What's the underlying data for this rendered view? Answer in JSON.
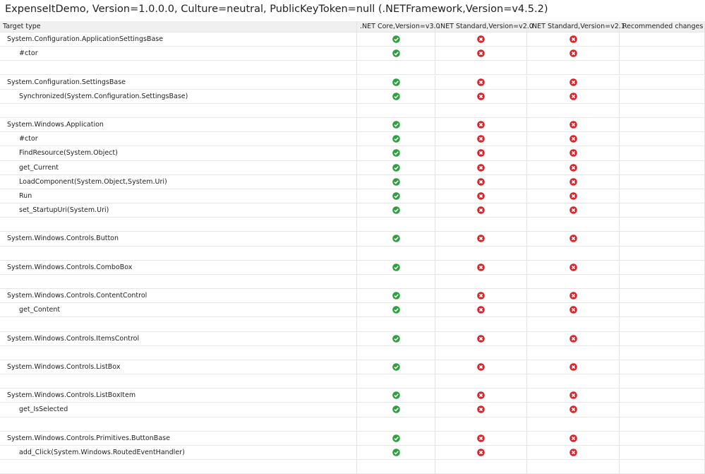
{
  "title": "ExpenseItDemo, Version=1.0.0.0, Culture=neutral, PublicKeyToken=null (.NETFramework,Version=v4.5.2)",
  "table": {
    "headers": [
      "Target type",
      ".NET Core,Version=v3.0",
      ".NET Standard,Version=v2.0",
      ".NET Standard,Version=v2.1",
      "Recommended changes"
    ],
    "groups": [
      {
        "type": "System.Configuration.ApplicationSettingsBase",
        "status": [
          true,
          false,
          false
        ],
        "members": [
          {
            "name": "#ctor",
            "status": [
              true,
              false,
              false
            ]
          }
        ]
      },
      {
        "type": "System.Configuration.SettingsBase",
        "status": [
          true,
          false,
          false
        ],
        "members": [
          {
            "name": "Synchronized(System.Configuration.SettingsBase)",
            "status": [
              true,
              false,
              false
            ]
          }
        ]
      },
      {
        "type": "System.Windows.Application",
        "status": [
          true,
          false,
          false
        ],
        "members": [
          {
            "name": "#ctor",
            "status": [
              true,
              false,
              false
            ]
          },
          {
            "name": "FindResource(System.Object)",
            "status": [
              true,
              false,
              false
            ]
          },
          {
            "name": "get_Current",
            "status": [
              true,
              false,
              false
            ]
          },
          {
            "name": "LoadComponent(System.Object,System.Uri)",
            "status": [
              true,
              false,
              false
            ]
          },
          {
            "name": "Run",
            "status": [
              true,
              false,
              false
            ]
          },
          {
            "name": "set_StartupUri(System.Uri)",
            "status": [
              true,
              false,
              false
            ]
          }
        ]
      },
      {
        "type": "System.Windows.Controls.Button",
        "status": [
          true,
          false,
          false
        ],
        "members": []
      },
      {
        "type": "System.Windows.Controls.ComboBox",
        "status": [
          true,
          false,
          false
        ],
        "members": []
      },
      {
        "type": "System.Windows.Controls.ContentControl",
        "status": [
          true,
          false,
          false
        ],
        "members": [
          {
            "name": "get_Content",
            "status": [
              true,
              false,
              false
            ]
          }
        ]
      },
      {
        "type": "System.Windows.Controls.ItemsControl",
        "status": [
          true,
          false,
          false
        ],
        "members": []
      },
      {
        "type": "System.Windows.Controls.ListBox",
        "status": [
          true,
          false,
          false
        ],
        "members": []
      },
      {
        "type": "System.Windows.Controls.ListBoxItem",
        "status": [
          true,
          false,
          false
        ],
        "members": [
          {
            "name": "get_IsSelected",
            "status": [
              true,
              false,
              false
            ]
          }
        ]
      },
      {
        "type": "System.Windows.Controls.Primitives.ButtonBase",
        "status": [
          true,
          false,
          false
        ],
        "members": [
          {
            "name": "add_Click(System.Windows.RoutedEventHandler)",
            "status": [
              true,
              false,
              false
            ]
          }
        ]
      }
    ]
  }
}
